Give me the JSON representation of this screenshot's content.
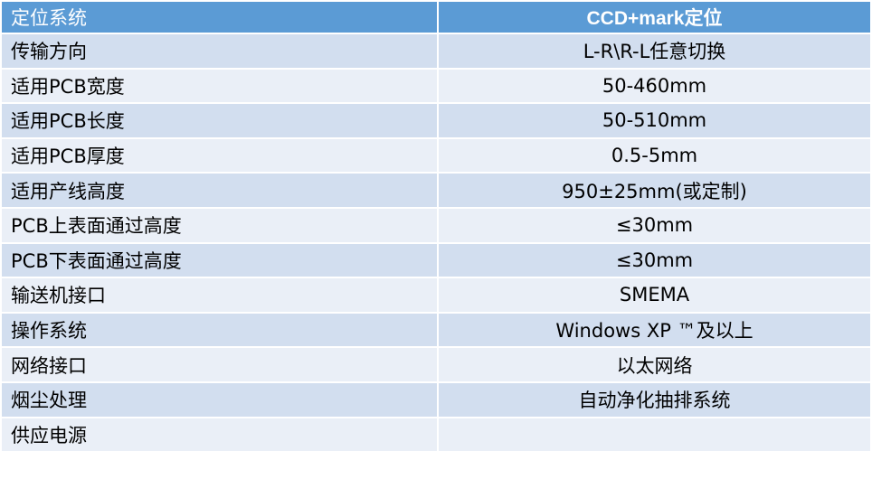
{
  "header": {
    "label": "定位系统",
    "value": "CCD+mark定位"
  },
  "rows": [
    {
      "label": "传输方向",
      "value": "L-R\\R-L任意切换"
    },
    {
      "label": "适用PCB宽度",
      "value": "50-460mm"
    },
    {
      "label": "适用PCB长度",
      "value": "50-510mm"
    },
    {
      "label": "适用PCB厚度",
      "value": "0.5-5mm"
    },
    {
      "label": "适用产线高度",
      "value": "950±25mm(或定制)"
    },
    {
      "label": "PCB上表面通过高度",
      "value": "≤30mm"
    },
    {
      "label": "PCB下表面通过高度",
      "value": "≤30mm"
    },
    {
      "label": "输送机接口",
      "value": "SMEMA"
    },
    {
      "label": "操作系统",
      "value": "Windows XP ™及以上"
    },
    {
      "label": "网络接口",
      "value": "以太网络"
    },
    {
      "label": "烟尘处理",
      "value": "自动净化抽排系统"
    },
    {
      "label": "供应电源",
      "value": ""
    }
  ],
  "colors": {
    "header": "#5b9bd5",
    "row_odd": "#d2deef",
    "row_even": "#eaeff7"
  }
}
